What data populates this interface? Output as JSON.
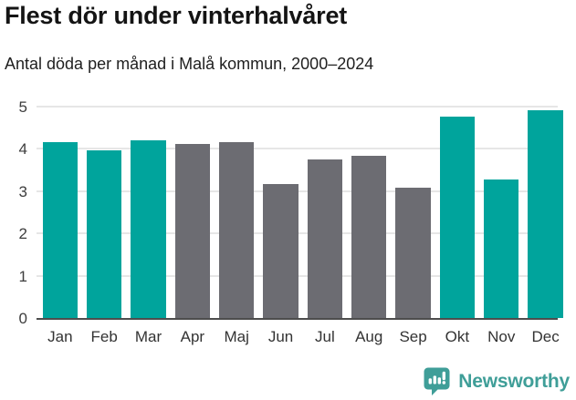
{
  "header": {
    "title": "Flest dör under vinterhalvåret",
    "subtitle": "Antal döda per månad i Malå kommun, 2000–2024"
  },
  "chart_data": {
    "type": "bar",
    "title": "Flest dör under vinterhalvåret",
    "subtitle": "Antal döda per månad i Malå kommun, 2000–2024",
    "categories": [
      "Jan",
      "Feb",
      "Mar",
      "Apr",
      "Maj",
      "Jun",
      "Jul",
      "Aug",
      "Sep",
      "Okt",
      "Nov",
      "Dec"
    ],
    "values": [
      4.16,
      3.96,
      4.2,
      4.12,
      4.16,
      3.16,
      3.76,
      3.84,
      3.08,
      4.76,
      3.28,
      4.92
    ],
    "bar_color_keys": [
      "teal",
      "teal",
      "teal",
      "gray",
      "gray",
      "gray",
      "gray",
      "gray",
      "gray",
      "teal",
      "teal",
      "teal"
    ],
    "colors": {
      "teal": "#00a49c",
      "gray": "#6c6c72"
    },
    "xlabel": "",
    "ylabel": "",
    "ylim": [
      0,
      5
    ],
    "yticks": [
      0,
      1,
      2,
      3,
      4,
      5
    ],
    "grid": true,
    "legend": false,
    "axis_color": "#4d4d4d",
    "gridline_color": "#e6e6e6",
    "tick_label_color": "#3d3d3d"
  },
  "footer": {
    "brand": "Newsworthy",
    "logo_icon": "bar-chart-speech-bubble-icon",
    "brand_color": "#3f9e98"
  }
}
